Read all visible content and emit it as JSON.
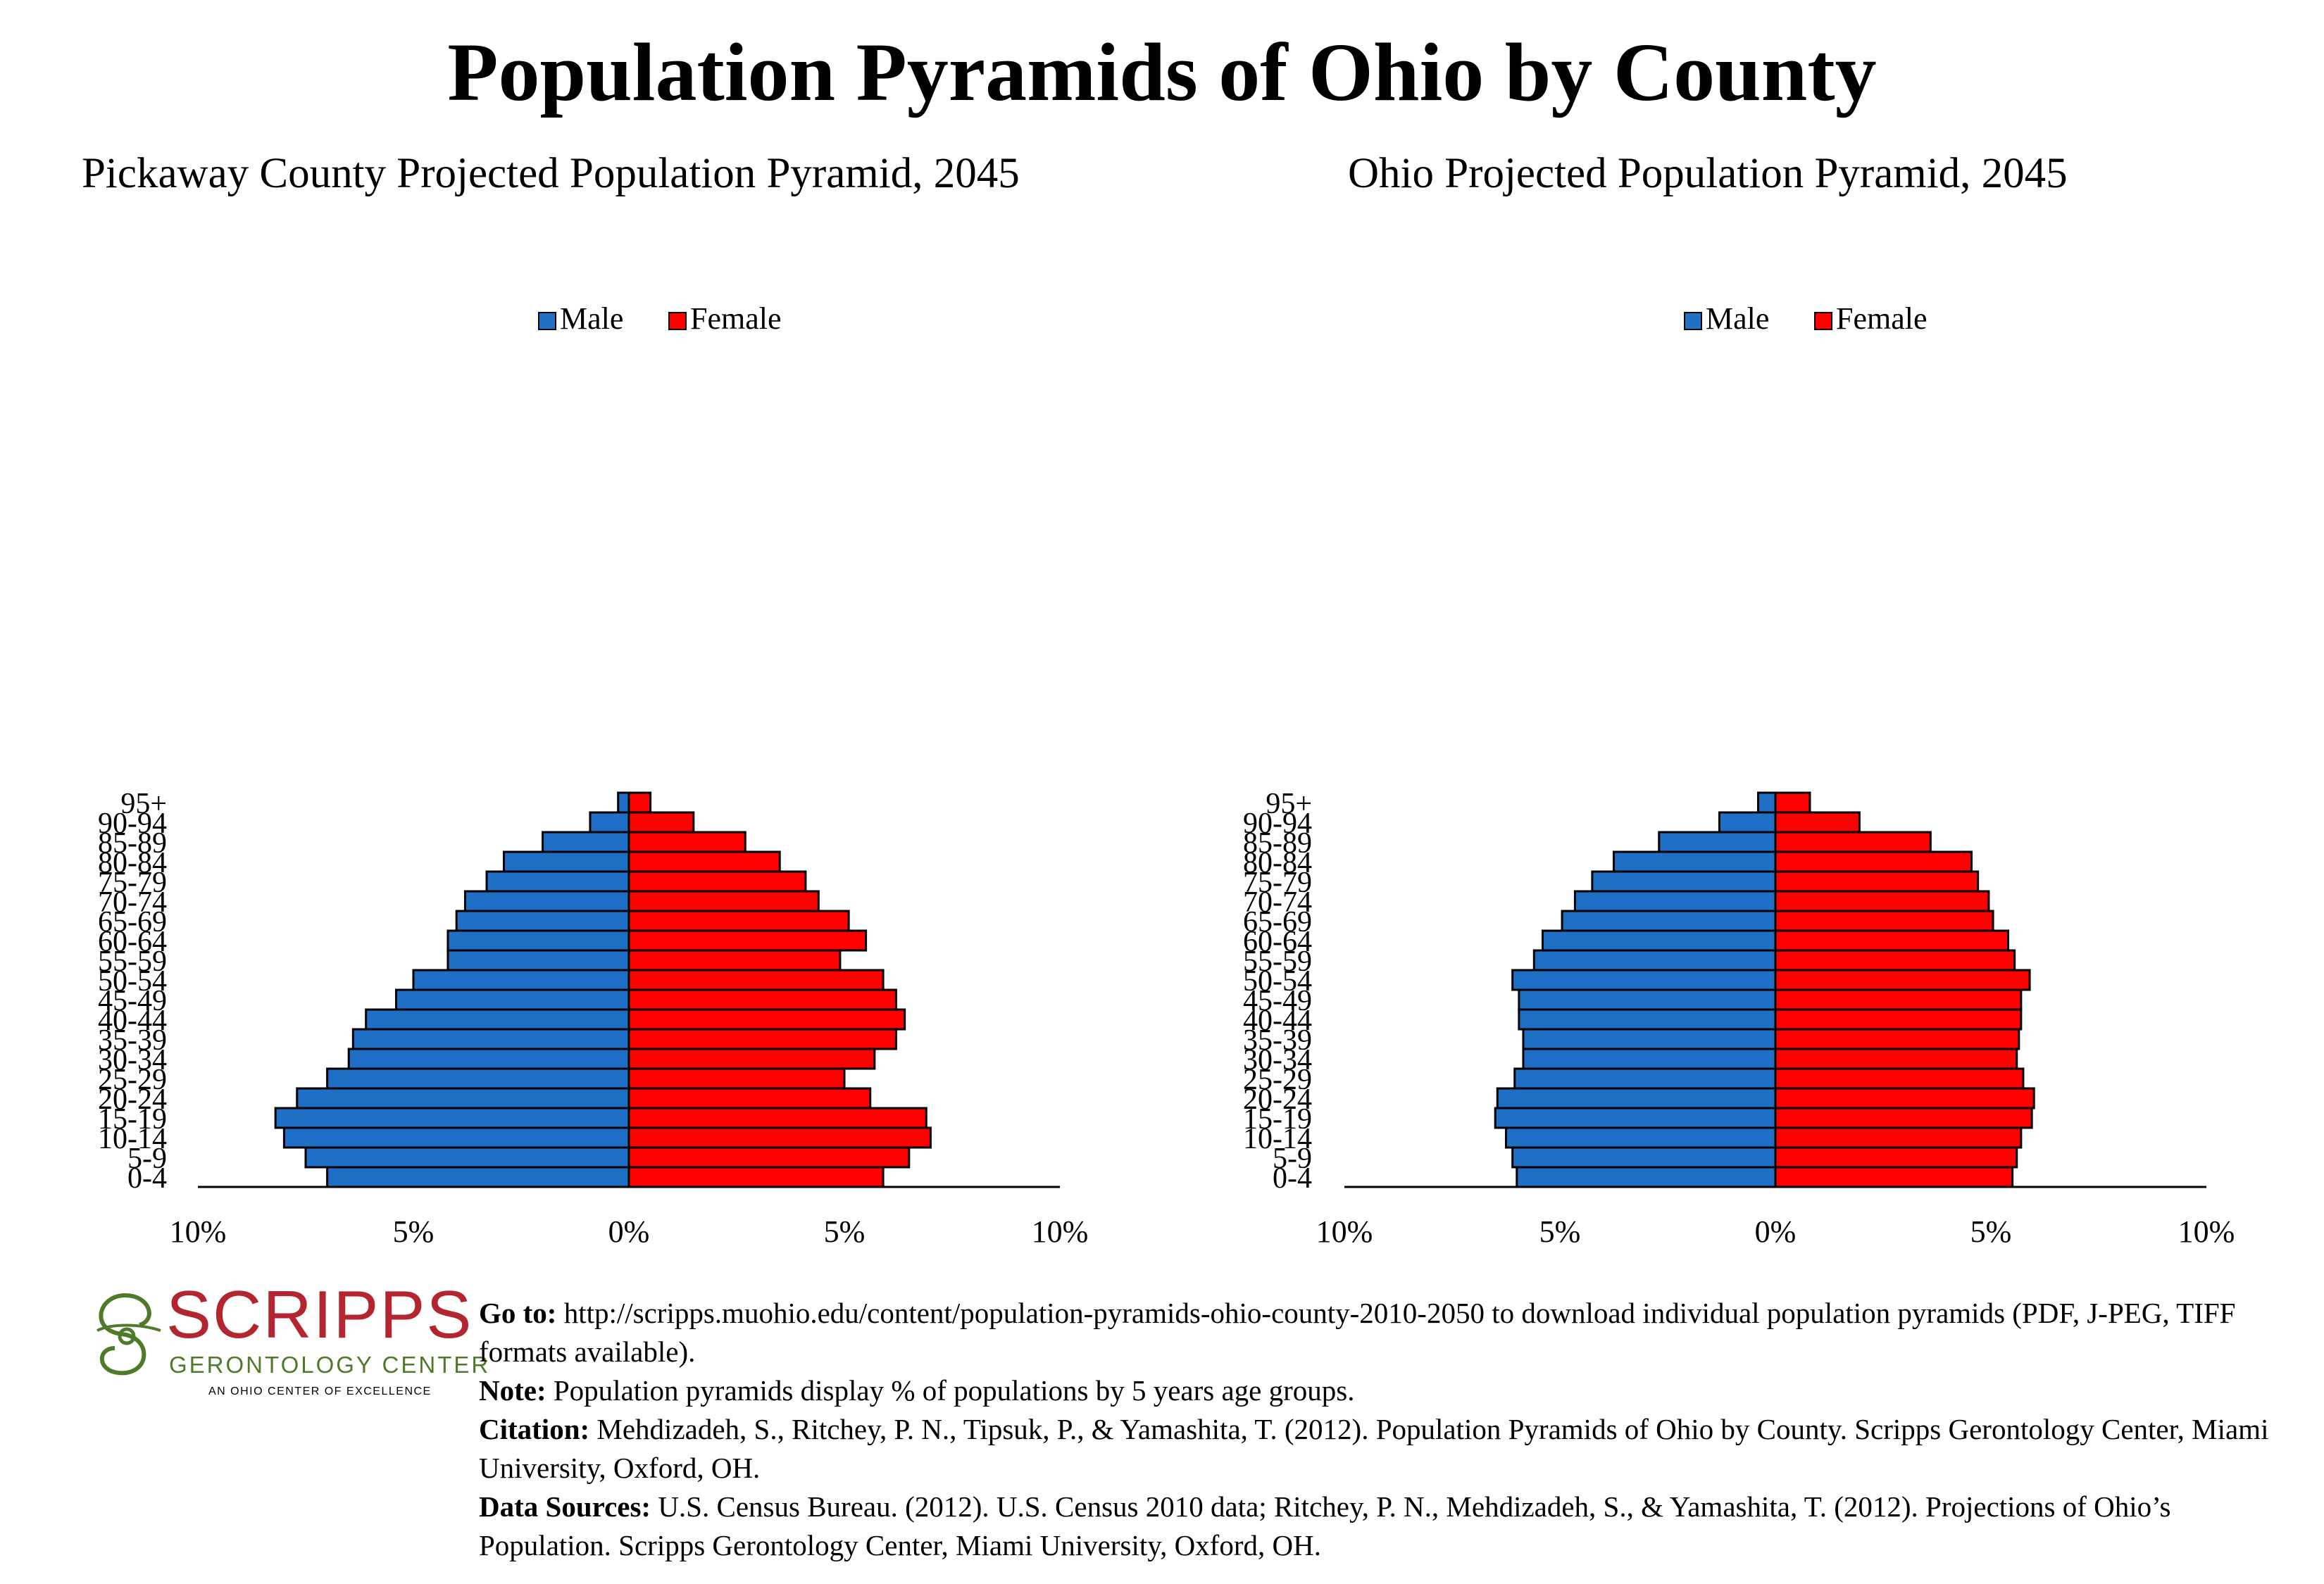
{
  "page": {
    "title": "Population Pyramids of Ohio by County"
  },
  "legend_labels": {
    "male": "Male",
    "female": "Female"
  },
  "colors": {
    "male": "#1f6fc6",
    "female": "#ff0000",
    "axis": "#000000"
  },
  "age_groups": [
    "0-4",
    "5-9",
    "10-14",
    "15-19",
    "20-24",
    "25-29",
    "30-34",
    "35-39",
    "40-44",
    "45-49",
    "50-54",
    "55-59",
    "60-64",
    "65-69",
    "70-74",
    "75-79",
    "80-84",
    "85-89",
    "90-94",
    "95+"
  ],
  "x_tick_labels": [
    "10%",
    "5%",
    "0%",
    "5%",
    "10%"
  ],
  "chart_data": [
    {
      "type": "bar",
      "orientation": "horizontal-pyramid",
      "title": "Pickaway County Projected Population Pyramid, 2045",
      "xlabel": "",
      "ylabel": "",
      "xlim": [
        -10,
        10
      ],
      "legend_position": "top-center",
      "grid": false,
      "categories": [
        "0-4",
        "5-9",
        "10-14",
        "15-19",
        "20-24",
        "25-29",
        "30-34",
        "35-39",
        "40-44",
        "45-49",
        "50-54",
        "55-59",
        "60-64",
        "65-69",
        "70-74",
        "75-79",
        "80-84",
        "85-89",
        "90-94",
        "95+"
      ],
      "series": [
        {
          "name": "Male",
          "values": [
            7.0,
            7.5,
            8.0,
            8.2,
            7.7,
            7.0,
            6.5,
            6.4,
            6.1,
            5.4,
            5.0,
            4.2,
            4.2,
            4.0,
            3.8,
            3.3,
            2.9,
            2.0,
            0.9,
            0.25
          ]
        },
        {
          "name": "Female",
          "values": [
            5.9,
            6.5,
            7.0,
            6.9,
            5.6,
            5.0,
            5.7,
            6.2,
            6.4,
            6.2,
            5.9,
            4.9,
            5.5,
            5.1,
            4.4,
            4.1,
            3.5,
            2.7,
            1.5,
            0.5
          ]
        }
      ]
    },
    {
      "type": "bar",
      "orientation": "horizontal-pyramid",
      "title": "Ohio Projected Population Pyramid, 2045",
      "xlabel": "",
      "ylabel": "",
      "xlim": [
        -10,
        10
      ],
      "legend_position": "top-center",
      "grid": false,
      "categories": [
        "0-4",
        "5-9",
        "10-14",
        "15-19",
        "20-24",
        "25-29",
        "30-34",
        "35-39",
        "40-44",
        "45-49",
        "50-54",
        "55-59",
        "60-64",
        "65-69",
        "70-74",
        "75-79",
        "80-84",
        "85-89",
        "90-94",
        "95+"
      ],
      "series": [
        {
          "name": "Male",
          "values": [
            6.0,
            6.1,
            6.25,
            6.5,
            6.45,
            6.05,
            5.85,
            5.85,
            5.95,
            5.95,
            6.1,
            5.6,
            5.4,
            4.95,
            4.65,
            4.25,
            3.75,
            2.7,
            1.3,
            0.4
          ]
        },
        {
          "name": "Female",
          "values": [
            5.5,
            5.6,
            5.7,
            5.95,
            6.0,
            5.75,
            5.6,
            5.65,
            5.7,
            5.7,
            5.9,
            5.55,
            5.4,
            5.05,
            4.95,
            4.7,
            4.55,
            3.6,
            1.95,
            0.8
          ]
        }
      ]
    }
  ],
  "logo": {
    "brand": "SCRIPPS",
    "subtitle": "GERONTOLOGY CENTER",
    "tagline": "AN OHIO CENTER OF EXCELLENCE"
  },
  "notes": {
    "goto_label": "Go to:",
    "goto_text": " http://scripps.muohio.edu/content/population-pyramids-ohio-county-2010-2050 to download individual population pyramids (PDF, J-PEG, TIFF formats available).",
    "note_label": "Note:",
    "note_text": " Population pyramids display % of populations by 5 years age groups.",
    "citation_label": "Citation:",
    "citation_text": " Mehdizadeh, S., Ritchey, P. N., Tipsuk, P., & Yamashita, T. (2012). Population Pyramids of Ohio by County. Scripps Gerontology Center, Miami University, Oxford, OH.",
    "sources_label": "Data Sources:",
    "sources_text": " U.S. Census Bureau. (2012). U.S. Census 2010 data; Ritchey, P. N., Mehdizadeh, S., & Yamashita, T. (2012). Projections of Ohio’s Population. Scripps Gerontology Center, Miami University, Oxford, OH."
  }
}
